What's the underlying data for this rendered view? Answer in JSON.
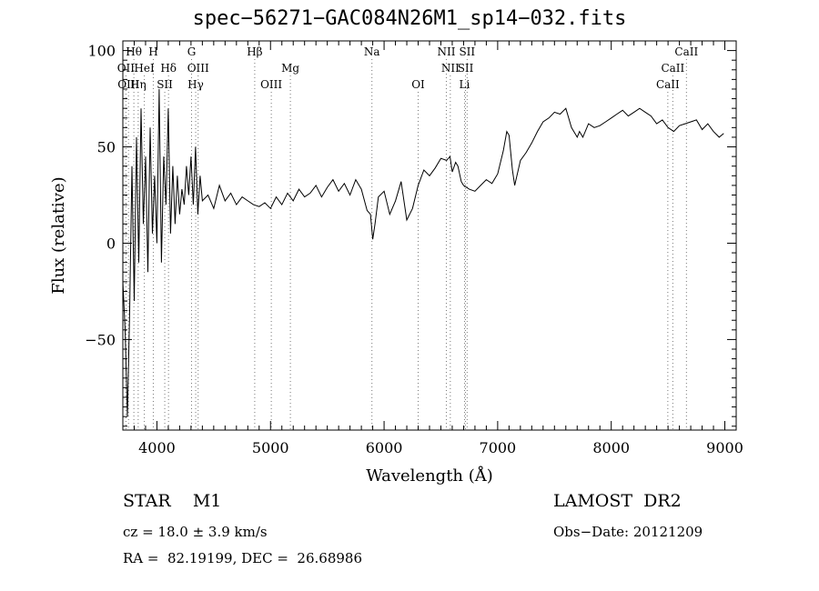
{
  "chart_data": {
    "type": "line",
    "title": "spec−56271−GAC084N26M1_sp14−032.fits",
    "xlabel": "Wavelength (Å)",
    "ylabel": "Flux (relative)",
    "xlim": [
      3700,
      9100
    ],
    "ylim": [
      -97,
      105
    ],
    "x_ticks": [
      4000,
      5000,
      6000,
      7000,
      8000,
      9000
    ],
    "y_ticks": [
      -50,
      0,
      50,
      100
    ],
    "y_tick_labels": [
      "−50",
      "0",
      "50",
      "100"
    ],
    "grid": false,
    "series": [
      {
        "x": [
          3700,
          3720,
          3740,
          3760,
          3780,
          3800,
          3820,
          3840,
          3860,
          3880,
          3900,
          3920,
          3940,
          3960,
          3980,
          4000,
          4020,
          4040,
          4060,
          4080,
          4100,
          4120,
          4140,
          4160,
          4180,
          4200,
          4220,
          4240,
          4260,
          4280,
          4300,
          4320,
          4340,
          4360,
          4380,
          4400,
          4450,
          4500,
          4550,
          4600,
          4650,
          4700,
          4750,
          4800,
          4850,
          4900,
          4950,
          5000,
          5050,
          5100,
          5150,
          5200,
          5250,
          5300,
          5350,
          5400,
          5450,
          5500,
          5550,
          5600,
          5650,
          5700,
          5750,
          5800,
          5850,
          5880,
          5900,
          5920,
          5950,
          6000,
          6050,
          6100,
          6150,
          6200,
          6250,
          6300,
          6350,
          6400,
          6450,
          6500,
          6550,
          6580,
          6600,
          6630,
          6650,
          6680,
          6700,
          6750,
          6800,
          6850,
          6900,
          6950,
          7000,
          7050,
          7080,
          7100,
          7130,
          7150,
          7200,
          7250,
          7300,
          7350,
          7400,
          7450,
          7500,
          7550,
          7600,
          7650,
          7700,
          7720,
          7750,
          7800,
          7850,
          7900,
          7950,
          8000,
          8050,
          8100,
          8150,
          8200,
          8250,
          8300,
          8350,
          8400,
          8450,
          8500,
          8550,
          8600,
          8650,
          8700,
          8750,
          8800,
          8850,
          8900,
          8950,
          8990
        ],
        "y": [
          -20,
          -45,
          -90,
          -35,
          40,
          -30,
          55,
          -10,
          70,
          10,
          45,
          -15,
          60,
          5,
          35,
          0,
          80,
          -10,
          45,
          20,
          70,
          5,
          40,
          10,
          35,
          15,
          28,
          20,
          40,
          25,
          45,
          20,
          50,
          15,
          35,
          22,
          25,
          18,
          30,
          22,
          26,
          20,
          24,
          22,
          20,
          19,
          21,
          18,
          24,
          20,
          26,
          22,
          28,
          24,
          26,
          30,
          24,
          29,
          33,
          27,
          31,
          25,
          33,
          28,
          17,
          15,
          2,
          10,
          24,
          27,
          15,
          22,
          32,
          12,
          18,
          30,
          38,
          35,
          39,
          44,
          43,
          45,
          37,
          42,
          40,
          32,
          30,
          28,
          27,
          30,
          33,
          31,
          36,
          48,
          58,
          56,
          38,
          30,
          43,
          47,
          52,
          58,
          63,
          65,
          68,
          67,
          70,
          60,
          55,
          58,
          55,
          62,
          60,
          61,
          63,
          65,
          67,
          69,
          66,
          68,
          70,
          68,
          66,
          62,
          64,
          60,
          58,
          61,
          62,
          63,
          64,
          59,
          62,
          58,
          55,
          57
        ]
      }
    ],
    "annotations": [
      {
        "label": "Hθ",
        "x": 3797,
        "row": 0
      },
      {
        "label": "H",
        "x": 3968,
        "row": 0
      },
      {
        "label": "G",
        "x": 4305,
        "row": 0
      },
      {
        "label": "Hβ",
        "x": 4861,
        "row": 0
      },
      {
        "label": "Na",
        "x": 5893,
        "row": 0
      },
      {
        "label": "NII",
        "x": 6548,
        "row": 0
      },
      {
        "label": "SII",
        "x": 6731,
        "row": 0
      },
      {
        "label": "CaII",
        "x": 8662,
        "row": 0
      },
      {
        "label": "OII",
        "x": 3727,
        "row": 1
      },
      {
        "label": "HeI",
        "x": 3889,
        "row": 1
      },
      {
        "label": "Hδ",
        "x": 4102,
        "row": 1
      },
      {
        "label": "OIII",
        "x": 4363,
        "row": 1
      },
      {
        "label": "Mg",
        "x": 5175,
        "row": 1
      },
      {
        "label": "NII",
        "x": 6583,
        "row": 1
      },
      {
        "label": "SII",
        "x": 6717,
        "row": 1
      },
      {
        "label": "CaII",
        "x": 8542,
        "row": 1
      },
      {
        "label": "OIII",
        "x": 3750,
        "row": 2
      },
      {
        "label": "Hη",
        "x": 3835,
        "row": 2
      },
      {
        "label": "SII",
        "x": 4069,
        "row": 2
      },
      {
        "label": "Hγ",
        "x": 4341,
        "row": 2
      },
      {
        "label": "OIII",
        "x": 5007,
        "row": 2
      },
      {
        "label": "OI",
        "x": 6300,
        "row": 2
      },
      {
        "label": "Li",
        "x": 6708,
        "row": 2
      },
      {
        "label": "CaII",
        "x": 8498,
        "row": 2
      }
    ]
  },
  "info": {
    "object_class": "STAR    M1",
    "survey": "LAMOST  DR2",
    "redshift": "cz = 18.0 ± 3.9 km/s",
    "obs_date": "Obs−Date: 20121209",
    "coordinates": "RA =  82.19199, DEC =  26.68986"
  }
}
